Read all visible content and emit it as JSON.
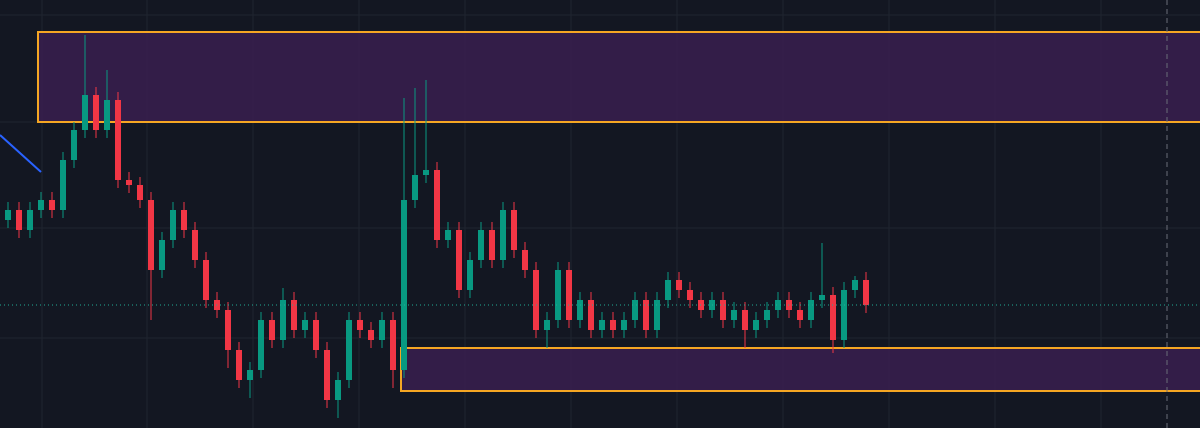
{
  "chart_data": {
    "type": "candlestick",
    "ylim": [
      0,
      428
    ],
    "up_color": "#089981",
    "down_color": "#f23645",
    "open": [
      208,
      218,
      198,
      218,
      228,
      218,
      268,
      298,
      333,
      298,
      328,
      248,
      243,
      228,
      158,
      188,
      218,
      198,
      168,
      128,
      118,
      78,
      48,
      58,
      108,
      88,
      128,
      98,
      108,
      78,
      28,
      48,
      108,
      98,
      88,
      108,
      58,
      228,
      253,
      258,
      188,
      198,
      138,
      168,
      198,
      168,
      218,
      178,
      158,
      98,
      108,
      158,
      108,
      128,
      98,
      108,
      98,
      108,
      128,
      98,
      128,
      148,
      138,
      128,
      118,
      128,
      108,
      118,
      98,
      108,
      118,
      128,
      118,
      108,
      128,
      133,
      88,
      138,
      148
    ],
    "high": [
      226,
      226,
      226,
      236,
      236,
      276,
      306,
      393,
      341,
      358,
      336,
      256,
      251,
      236,
      196,
      226,
      226,
      206,
      176,
      136,
      126,
      86,
      66,
      116,
      116,
      140,
      136,
      116,
      116,
      86,
      56,
      116,
      116,
      106,
      116,
      116,
      330,
      340,
      348,
      266,
      206,
      206,
      176,
      206,
      206,
      226,
      226,
      186,
      166,
      116,
      166,
      166,
      136,
      136,
      116,
      116,
      116,
      136,
      136,
      136,
      156,
      156,
      146,
      136,
      136,
      136,
      126,
      126,
      116,
      126,
      136,
      136,
      126,
      136,
      185,
      141,
      146,
      152,
      156
    ],
    "low": [
      200,
      190,
      190,
      210,
      210,
      210,
      260,
      290,
      290,
      290,
      240,
      235,
      220,
      108,
      150,
      180,
      190,
      160,
      120,
      110,
      60,
      40,
      30,
      50,
      80,
      80,
      90,
      90,
      70,
      20,
      10,
      40,
      90,
      80,
      80,
      40,
      50,
      220,
      245,
      180,
      180,
      130,
      130,
      160,
      160,
      160,
      170,
      150,
      90,
      80,
      100,
      100,
      100,
      90,
      90,
      90,
      90,
      100,
      90,
      90,
      120,
      130,
      120,
      110,
      110,
      100,
      100,
      80,
      90,
      100,
      110,
      110,
      100,
      100,
      120,
      75,
      80,
      130,
      115
    ],
    "close": [
      218,
      198,
      218,
      228,
      218,
      268,
      298,
      333,
      298,
      328,
      248,
      243,
      228,
      158,
      188,
      218,
      198,
      168,
      128,
      118,
      78,
      48,
      58,
      108,
      88,
      128,
      98,
      108,
      78,
      28,
      48,
      108,
      98,
      88,
      108,
      58,
      228,
      253,
      258,
      188,
      198,
      138,
      168,
      198,
      168,
      218,
      178,
      158,
      98,
      108,
      158,
      108,
      128,
      98,
      108,
      98,
      108,
      128,
      98,
      128,
      148,
      138,
      128,
      118,
      128,
      108,
      118,
      98,
      108,
      118,
      128,
      118,
      108,
      128,
      133,
      88,
      138,
      148,
      123
    ],
    "zones": [
      {
        "top": 396,
        "bottom": 306,
        "start": 3
      },
      {
        "top": 80,
        "bottom": 37,
        "start": 36
      }
    ],
    "zone_fill": "#3a1f4f",
    "zone_border": "#f5a623",
    "last_price_line": true,
    "last_price_color": "#22ab94"
  }
}
